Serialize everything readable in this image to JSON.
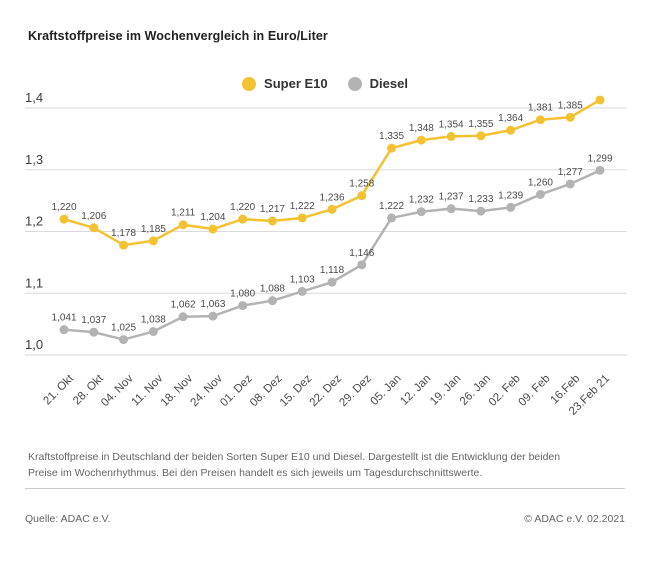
{
  "title": "Kraftstoffpreise im Wochenvergleich in Euro/Liter",
  "colors": {
    "super_e10": "#F2C233",
    "diesel": "#B3B3B3",
    "grid": "#DADADA",
    "tick_text": "#4A4A4A",
    "value_text": "#4A4A4A"
  },
  "legend": {
    "items": [
      {
        "label": "Super E10",
        "color": "#F2C233"
      },
      {
        "label": "Diesel",
        "color": "#B3B3B3"
      }
    ]
  },
  "chart_data": {
    "type": "line",
    "title": "Kraftstoffpreise im Wochenvergleich in Euro/Liter",
    "xlabel": "",
    "ylabel": "Euro/Liter",
    "ylim": [
      1.0,
      1.4
    ],
    "yticks": [
      1.0,
      1.1,
      1.2,
      1.3,
      1.4
    ],
    "grid": true,
    "legend_position": "top-center",
    "decimal_separator": ",",
    "value_labels": true,
    "categories": [
      "21. Okt",
      "28. Okt",
      "04. Nov",
      "11. Nov",
      "18. Nov",
      "24. Nov",
      "01. Dez",
      "08. Dez",
      "15. Dez",
      "22. Dez",
      "29. Dez",
      "05. Jan",
      "12. Jan",
      "19. Jan",
      "26. Jan",
      "02. Feb",
      "09. Feb",
      "16.Feb",
      "23.Feb 21"
    ],
    "series": [
      {
        "name": "Super E10",
        "color": "#F2C233",
        "values": [
          1.22,
          1.206,
          1.178,
          1.185,
          1.211,
          1.204,
          1.22,
          1.217,
          1.222,
          1.236,
          1.258,
          1.335,
          1.348,
          1.354,
          1.355,
          1.364,
          1.381,
          1.385,
          1.413
        ]
      },
      {
        "name": "Diesel",
        "color": "#B3B3B3",
        "values": [
          1.041,
          1.037,
          1.025,
          1.038,
          1.062,
          1.063,
          1.08,
          1.088,
          1.103,
          1.118,
          1.146,
          1.222,
          1.232,
          1.237,
          1.233,
          1.239,
          1.26,
          1.277,
          1.299
        ]
      }
    ]
  },
  "description": "Kraftstoffpreise in Deutschland der beiden Sorten Super E10 und Diesel. Dargestellt ist die Entwicklung der beiden Preise im Wochenrhythmus. Bei den Preisen handelt es sich jeweils um Tagesdurchschnittswerte.",
  "footer": {
    "source": "Quelle: ADAC e.V.",
    "copyright": "© ADAC e.V. 02.2021"
  }
}
